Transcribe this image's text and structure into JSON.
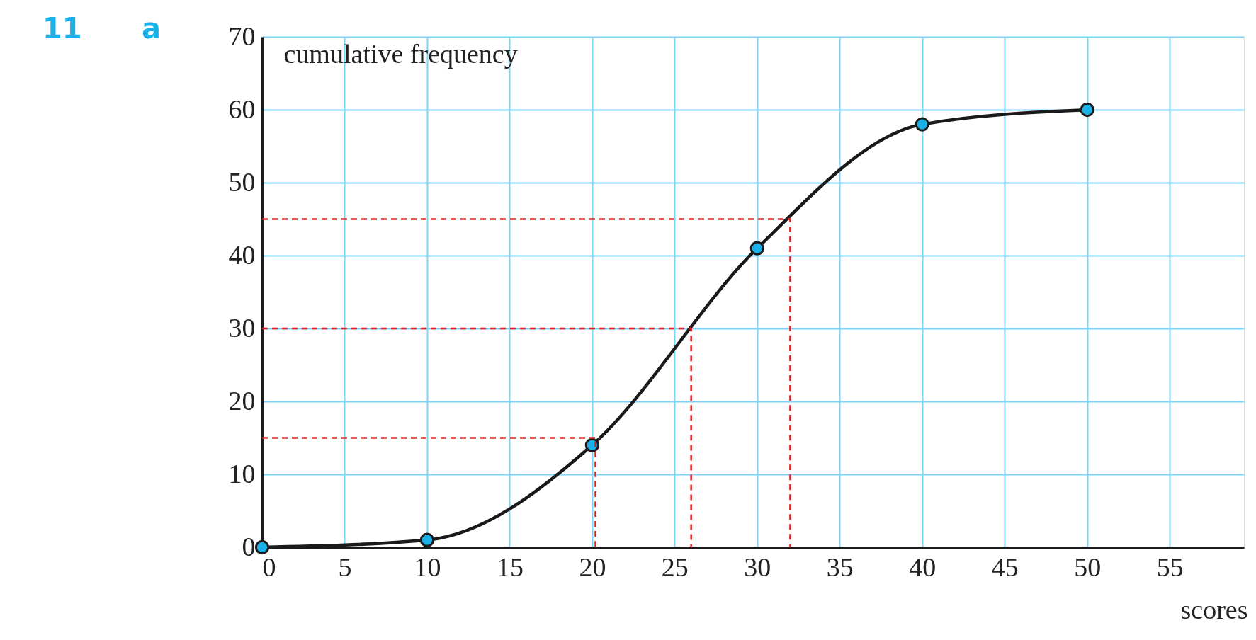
{
  "chart_data": {
    "type": "line",
    "xlabel": "scores",
    "ylabel": "cumulative frequency",
    "annotations": [
      "11",
      "a"
    ],
    "xlim": [
      0,
      59.5
    ],
    "ylim": [
      0,
      70
    ],
    "xticks": [
      0,
      5,
      10,
      15,
      20,
      25,
      30,
      35,
      40,
      45,
      50,
      55
    ],
    "yticks": [
      0,
      10,
      20,
      30,
      40,
      50,
      60,
      70
    ],
    "grid": true,
    "series": [
      {
        "color": "#1a1a1a",
        "x": [
          0,
          10,
          20,
          30,
          40,
          50
        ],
        "values": [
          0,
          1,
          14,
          41,
          58,
          60
        ],
        "marker": "none",
        "line_style": "solid"
      },
      {
        "type": "scatter",
        "color": "#1ab0e8",
        "x": [
          0,
          10,
          20,
          30,
          40,
          50
        ],
        "values": [
          0,
          1,
          14,
          41,
          58,
          60
        ],
        "marker": "circle"
      },
      {
        "type": "line",
        "color": "#e02020",
        "x": [
          0,
          20.2,
          20.2
        ],
        "values": [
          15,
          15,
          0
        ],
        "marker": "none",
        "line_style": "dashed"
      },
      {
        "type": "line",
        "color": "#e02020",
        "x": [
          0,
          26,
          26
        ],
        "values": [
          30,
          30,
          0
        ],
        "marker": "none",
        "line_style": "dashed"
      },
      {
        "type": "line",
        "color": "#e02020",
        "x": [
          0,
          32,
          32
        ],
        "values": [
          45,
          45,
          0
        ],
        "marker": "none",
        "line_style": "dashed"
      }
    ]
  }
}
